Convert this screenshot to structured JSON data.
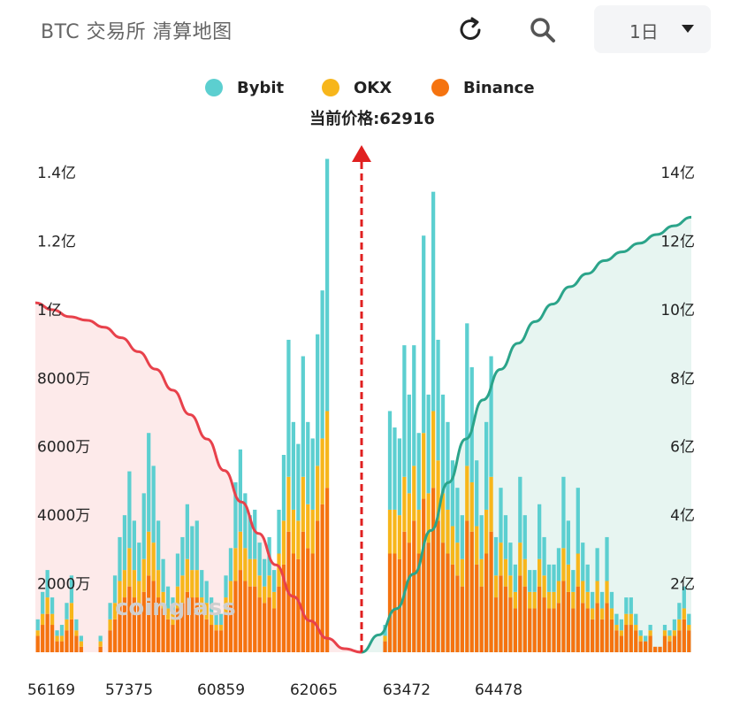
{
  "header": {
    "title": "BTC 交易所  清算地图",
    "period_label": "1日"
  },
  "icons": {
    "refresh": "refresh-icon",
    "search": "search-icon",
    "caret": "caret-down-icon"
  },
  "current_price_label": "当前价格:62916",
  "watermark": "coinglass",
  "colors": {
    "bybit": "#5ccfd0",
    "okx": "#f7b61b",
    "binance": "#f5730f",
    "short_cumulative": "#e8414b",
    "long_cumulative": "#2ba48a",
    "price_marker": "#e02020"
  },
  "chart_data": {
    "type": "bar",
    "legend": [
      "Bybit",
      "OKX",
      "Binance"
    ],
    "legend_position": "top-center",
    "current_price": 62916,
    "x_ticks": [
      56169,
      57375,
      60859,
      62065,
      63472,
      64478
    ],
    "y_left": {
      "ticks": [
        "2000万",
        "4000万",
        "6000万",
        "8000万",
        "1亿",
        "1.2亿",
        "1.4亿"
      ],
      "range": [
        0,
        140000000
      ]
    },
    "y_right": {
      "ticks": [
        "2亿",
        "4亿",
        "6亿",
        "8亿",
        "10亿",
        "12亿",
        "14亿"
      ],
      "range": [
        0,
        1400000000
      ]
    },
    "grid": false,
    "series": [
      {
        "name": "Bybit",
        "values": [
          2,
          4,
          5,
          3,
          1,
          2,
          3,
          5,
          2,
          1,
          0,
          0,
          0,
          1,
          0,
          3,
          5,
          8,
          10,
          14,
          9,
          7,
          12,
          18,
          14,
          9,
          6,
          4,
          3,
          6,
          7,
          10,
          8,
          9,
          5,
          4,
          3,
          2,
          2,
          4,
          6,
          12,
          15,
          10,
          8,
          9,
          6,
          5,
          7,
          4,
          8,
          12,
          25,
          16,
          14,
          22,
          15,
          13,
          24,
          27,
          46,
          30,
          21,
          15,
          5,
          0,
          2,
          3,
          0,
          0,
          0,
          0,
          2,
          18,
          15,
          14,
          24,
          18,
          22,
          14,
          36,
          18,
          40,
          22,
          18,
          16,
          12,
          10,
          8,
          26,
          21,
          12,
          8,
          16,
          22,
          7,
          10,
          8,
          6,
          5,
          12,
          8,
          4,
          4,
          10,
          7,
          5,
          5,
          6,
          13,
          8,
          4,
          12,
          7,
          5,
          3,
          6,
          3,
          8,
          3,
          2,
          2,
          3,
          3,
          2,
          1,
          1,
          1,
          0,
          0,
          1,
          1,
          2,
          3,
          4,
          2
        ]
      },
      {
        "name": "OKX",
        "values": [
          1,
          2,
          3,
          2,
          1,
          1,
          2,
          3,
          1,
          1,
          0,
          0,
          0,
          1,
          0,
          2,
          3,
          4,
          5,
          7,
          5,
          4,
          6,
          8,
          7,
          5,
          3,
          2,
          2,
          4,
          5,
          6,
          5,
          5,
          3,
          3,
          2,
          1,
          1,
          3,
          4,
          6,
          7,
          6,
          5,
          5,
          4,
          3,
          4,
          3,
          6,
          8,
          10,
          8,
          7,
          10,
          8,
          8,
          10,
          12,
          14,
          12,
          11,
          8,
          3,
          0,
          1,
          2,
          0,
          0,
          0,
          0,
          1,
          8,
          8,
          8,
          10,
          9,
          10,
          8,
          12,
          9,
          14,
          11,
          9,
          8,
          7,
          6,
          5,
          10,
          9,
          7,
          5,
          8,
          10,
          4,
          6,
          5,
          4,
          3,
          6,
          5,
          3,
          3,
          5,
          4,
          3,
          3,
          4,
          6,
          5,
          3,
          6,
          4,
          3,
          2,
          4,
          2,
          4,
          2,
          1,
          1,
          2,
          2,
          1,
          1,
          0,
          1,
          0,
          0,
          1,
          1,
          1,
          2,
          2,
          1
        ]
      },
      {
        "name": "Binance",
        "values": [
          3,
          5,
          7,
          5,
          2,
          2,
          4,
          6,
          3,
          1,
          0,
          0,
          0,
          1,
          0,
          4,
          6,
          9,
          10,
          12,
          10,
          9,
          11,
          14,
          13,
          10,
          8,
          6,
          5,
          8,
          9,
          11,
          10,
          10,
          7,
          6,
          5,
          4,
          4,
          7,
          9,
          13,
          15,
          13,
          12,
          12,
          10,
          9,
          10,
          8,
          12,
          16,
          22,
          18,
          17,
          22,
          19,
          18,
          24,
          27,
          30,
          26,
          23,
          18,
          6,
          0,
          2,
          4,
          0,
          0,
          0,
          0,
          2,
          18,
          18,
          17,
          22,
          20,
          24,
          18,
          28,
          20,
          30,
          24,
          20,
          18,
          16,
          14,
          12,
          24,
          22,
          16,
          12,
          18,
          22,
          10,
          14,
          12,
          10,
          8,
          14,
          12,
          8,
          8,
          12,
          10,
          8,
          8,
          9,
          13,
          11,
          8,
          12,
          9,
          8,
          6,
          9,
          6,
          9,
          6,
          4,
          3,
          5,
          5,
          4,
          2,
          2,
          3,
          1,
          1,
          3,
          2,
          3,
          4,
          6,
          4
        ]
      },
      {
        "name": "",
        "role": "cumulative_short",
        "values": [
          1.0,
          0.98,
          0.96,
          0.95,
          0.93,
          0.9,
          0.86,
          0.81,
          0.75,
          0.68,
          0.61,
          0.52,
          0.43,
          0.34,
          0.25,
          0.16,
          0.09,
          0.04,
          0.01,
          0.0
        ]
      },
      {
        "name": "",
        "role": "cumulative_long",
        "values": [
          0.0,
          0.04,
          0.1,
          0.18,
          0.28,
          0.39,
          0.49,
          0.58,
          0.65,
          0.71,
          0.76,
          0.8,
          0.84,
          0.87,
          0.9,
          0.92,
          0.94,
          0.96,
          0.98,
          1.0
        ]
      }
    ]
  }
}
